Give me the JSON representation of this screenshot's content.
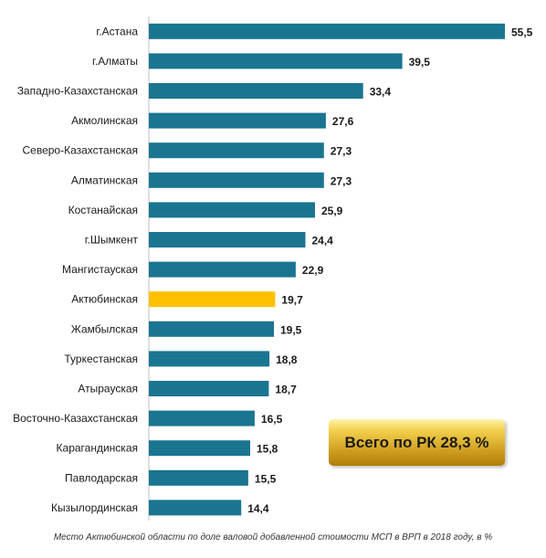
{
  "chart_data": {
    "type": "bar",
    "orientation": "horizontal",
    "categories": [
      "г.Астана",
      "г.Алматы",
      "Западно-Казахстанская",
      "Акмолинская",
      "Северо-Казахстанская",
      "Алматинская",
      "Костанайская",
      "г.Шымкент",
      "Мангистауская",
      "Актюбинская",
      "Жамбылская",
      "Туркестанская",
      "Атырауская",
      "Восточно-Казахстанская",
      "Карагандинская",
      "Павлодарская",
      "Кызылординская"
    ],
    "values": [
      55.5,
      39.5,
      33.4,
      27.6,
      27.3,
      27.3,
      25.9,
      24.4,
      22.9,
      19.7,
      19.5,
      18.8,
      18.7,
      16.5,
      15.8,
      15.5,
      14.4
    ],
    "value_labels": [
      "55,5",
      "39,5",
      "33,4",
      "27,6",
      "27,3",
      "27,3",
      "25,9",
      "24,4",
      "22,9",
      "19,7",
      "19,5",
      "18,8",
      "18,7",
      "16,5",
      "15,8",
      "15,5",
      "14,4"
    ],
    "highlight_index": 9,
    "xlim": [
      0,
      55.5
    ],
    "grid": false,
    "colors": {
      "bar": "#1a7591",
      "highlight": "#ffc000"
    }
  },
  "total_badge": {
    "text": "Всего по РК 28,3 %"
  },
  "caption": "Место  Актюбинской  области  по доле валовой добавленной  стоимости МСП  в ВРП в 2018 году, в %"
}
